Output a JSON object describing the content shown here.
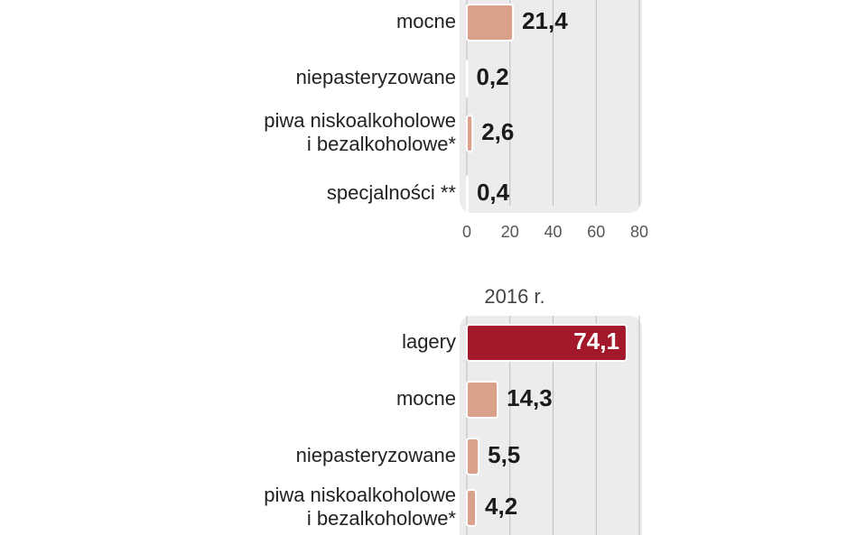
{
  "chart_data": [
    {
      "type": "barh",
      "categories": [
        "mocne",
        "niepasteryzowane",
        [
          "piwa niskoalkoholowe",
          "i bezalkoholowe*"
        ],
        "specjalności **"
      ],
      "values": [
        21.4,
        0.2,
        2.6,
        0.4
      ],
      "value_labels": [
        "21,4",
        "0,2",
        "2,6",
        "0,4"
      ],
      "colors": [
        "#d9a08a",
        "#d9a08a",
        "#d9a08a",
        "#d9a08a"
      ],
      "xlim": [
        0,
        80
      ],
      "xticks": [
        0,
        20,
        40,
        60,
        80
      ],
      "tick_labels": true,
      "grid": true
    },
    {
      "type": "barh",
      "title": "2016 r.",
      "categories": [
        "lagery",
        "mocne",
        "niepasteryzowane",
        [
          "piwa niskoalkoholowe",
          "i bezalkoholowe*"
        ]
      ],
      "values": [
        74.1,
        14.3,
        5.5,
        4.2
      ],
      "value_labels": [
        "74,1",
        "14,3",
        "5,5",
        "4,2"
      ],
      "colors": [
        "#a3192b",
        "#d9a08a",
        "#d9a08a",
        "#d9a08a"
      ],
      "xlim": [
        0,
        80
      ],
      "xticks": [
        0,
        20,
        40,
        60,
        80
      ],
      "tick_labels": false,
      "grid": true
    }
  ]
}
